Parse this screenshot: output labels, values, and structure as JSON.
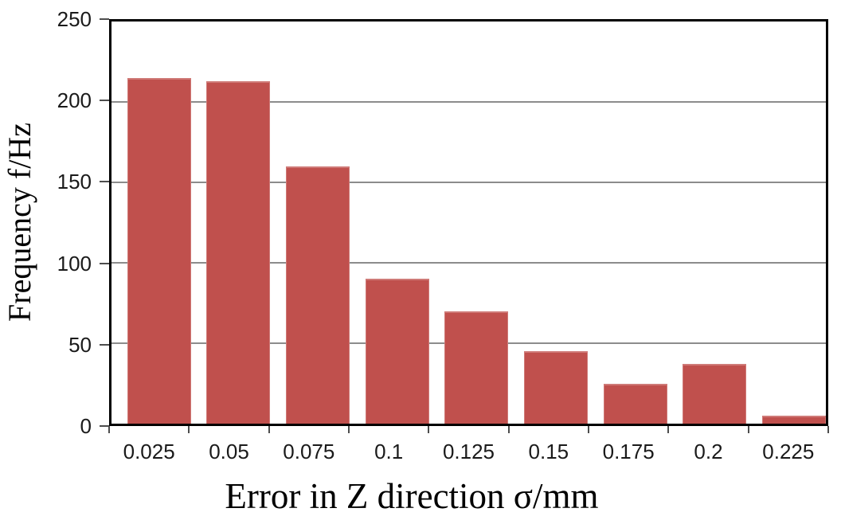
{
  "chart_data": {
    "type": "bar",
    "title": "",
    "categories": [
      "0.025",
      "0.05",
      "0.075",
      "0.1",
      "0.125",
      "0.15",
      "0.175",
      "0.2",
      "0.225"
    ],
    "values": [
      215,
      213,
      160,
      90,
      70,
      45,
      25,
      37,
      5
    ],
    "xlabel": "Error in Z direction σ/mm",
    "ylabel": "Frequency f/Hz",
    "ylim": [
      0,
      250
    ],
    "y_ticks": [
      0,
      50,
      100,
      150,
      200,
      250
    ],
    "y_tick_labels": [
      "0",
      "50",
      "100",
      "150",
      "200",
      "250"
    ],
    "grid": "horizontal-only",
    "legend_position": "none",
    "colors": {
      "bar_fill": "#c0504d",
      "bar_border": "#cf7a77",
      "gridline": "#8c8c8c",
      "axis_frame": "#000000",
      "tick_mark": "#4d4d4d",
      "tick_label": "#1a1a1a",
      "axis_title": "#000000",
      "background": "#ffffff"
    }
  }
}
